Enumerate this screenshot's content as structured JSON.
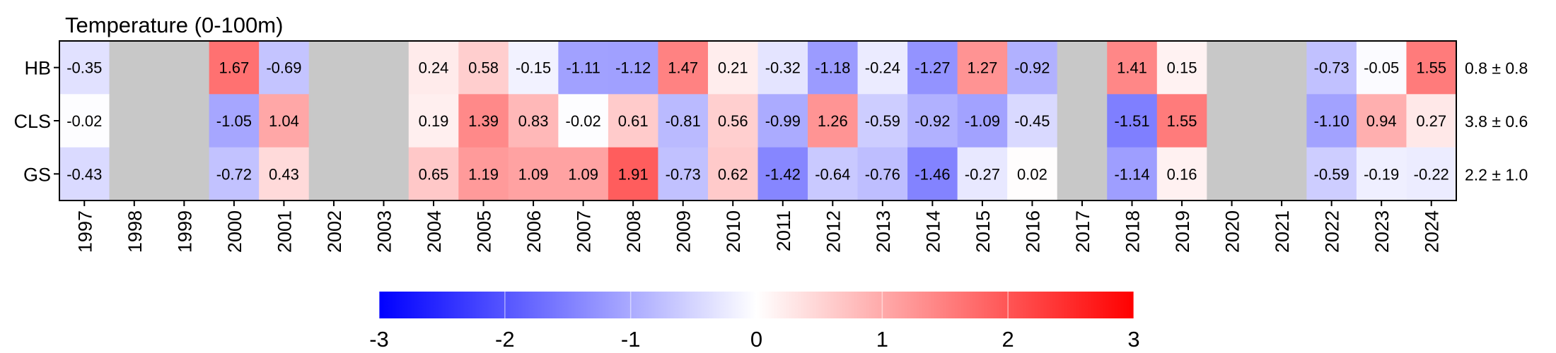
{
  "chart_data": {
    "type": "heatmap",
    "title": "Temperature (0-100m)",
    "rows": [
      "HB",
      "CLS",
      "GS"
    ],
    "columns": [
      "1997",
      "1998",
      "1999",
      "2000",
      "2001",
      "2002",
      "2003",
      "2004",
      "2005",
      "2006",
      "2007",
      "2008",
      "2009",
      "2010",
      "2011",
      "2012",
      "2013",
      "2014",
      "2015",
      "2016",
      "2017",
      "2018",
      "2019",
      "2020",
      "2021",
      "2022",
      "2023",
      "2024"
    ],
    "values": [
      [
        -0.35,
        null,
        null,
        1.67,
        -0.69,
        null,
        null,
        0.24,
        0.58,
        -0.15,
        -1.11,
        -1.12,
        1.47,
        0.21,
        -0.32,
        -1.18,
        -0.24,
        -1.27,
        1.27,
        -0.92,
        null,
        1.41,
        0.15,
        null,
        null,
        -0.73,
        -0.05,
        1.55
      ],
      [
        -0.02,
        null,
        null,
        -1.05,
        1.04,
        null,
        null,
        0.19,
        1.39,
        0.83,
        -0.02,
        0.61,
        -0.81,
        0.56,
        -0.99,
        1.26,
        -0.59,
        -0.92,
        -1.09,
        -0.45,
        null,
        -1.51,
        1.55,
        null,
        null,
        -1.1,
        0.94,
        0.27
      ],
      [
        -0.43,
        null,
        null,
        -0.72,
        0.43,
        null,
        null,
        0.65,
        1.19,
        1.09,
        1.09,
        1.91,
        -0.73,
        0.62,
        -1.42,
        -0.64,
        -0.76,
        -1.46,
        -0.27,
        0.02,
        null,
        -1.14,
        0.16,
        null,
        null,
        -0.59,
        -0.19,
        -0.22
      ]
    ],
    "value_labels": [
      [
        "-0.35",
        "",
        "",
        "1.67",
        "-0.69",
        "",
        "",
        "0.24",
        "0.58",
        "-0.15",
        "-1.11",
        "-1.12",
        "1.47",
        "0.21",
        "-0.32",
        "-1.18",
        "-0.24",
        "-1.27",
        "1.27",
        "-0.92",
        "",
        "1.41",
        "0.15",
        "",
        "",
        "-0.73",
        "-0.05",
        "1.55"
      ],
      [
        "-0.02",
        "",
        "",
        "-1.05",
        "1.04",
        "",
        "",
        "0.19",
        "1.39",
        "0.83",
        "-0.02",
        "0.61",
        "-0.81",
        "0.56",
        "-0.99",
        "1.26",
        "-0.59",
        "-0.92",
        "-1.09",
        "-0.45",
        "",
        "-1.51",
        "1.55",
        "",
        "",
        "-1.10",
        "0.94",
        "0.27"
      ],
      [
        "-0.43",
        "",
        "",
        "-0.72",
        "0.43",
        "",
        "",
        "0.65",
        "1.19",
        "1.09",
        "1.09",
        "1.91",
        "-0.73",
        "0.62",
        "-1.42",
        "-0.64",
        "-0.76",
        "-1.46",
        "-0.27",
        "0.02",
        "",
        "-1.14",
        "0.16",
        "",
        "",
        "-0.59",
        "-0.19",
        "-0.22"
      ]
    ],
    "row_annotations": [
      "0.8 ± 0.8",
      "3.8 ± 0.6",
      "2.2 ± 1.0"
    ],
    "colorbar": {
      "min": -3,
      "max": 3,
      "ticks": [
        "-3",
        "-2",
        "-1",
        "0",
        "1",
        "2",
        "3"
      ],
      "low_color": "#0000ff",
      "mid_color": "#ffffff",
      "high_color": "#ff0000"
    },
    "missing_color": "#c8c8c8",
    "legend": "bottom"
  }
}
